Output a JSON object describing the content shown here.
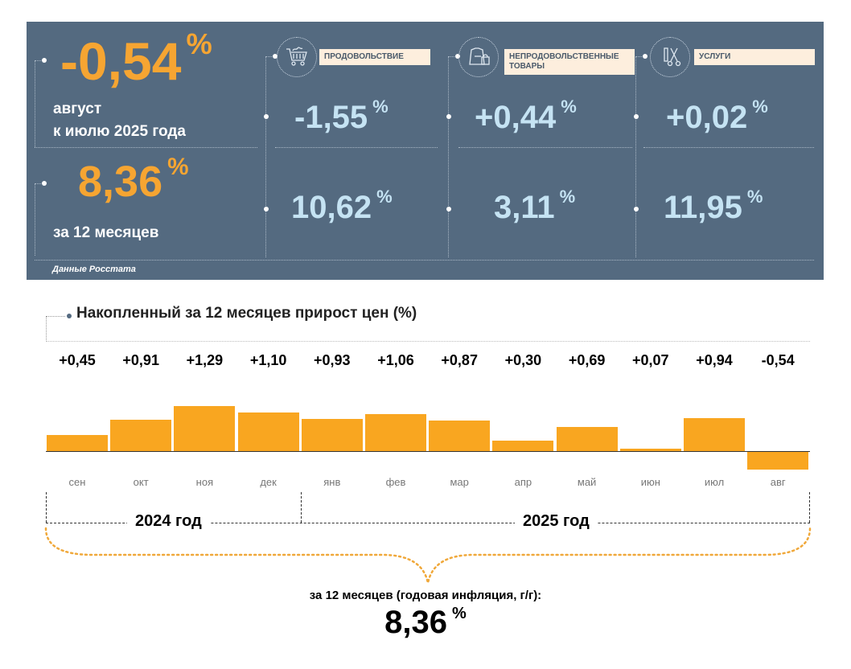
{
  "monthly": {
    "value": "-0,54",
    "unit": "%",
    "line1": "август",
    "line2": "к июлю 2025 года"
  },
  "annual": {
    "value": "8,36",
    "unit": "%",
    "label": "за 12 месяцев"
  },
  "categories": [
    {
      "name": "ПРОДОВОЛЬСТВИЕ",
      "icon": "shopping-cart-icon",
      "monthly": "-1,55",
      "annual": "10,62"
    },
    {
      "name": "НЕПРОДОВОЛЬСТВЕННЫЕ ТОВАРЫ",
      "icon": "clothing-bag-icon",
      "monthly": "+0,44",
      "annual": "3,11"
    },
    {
      "name": "УСЛУГИ",
      "icon": "scissors-comb-icon",
      "monthly": "+0,02",
      "annual": "11,95"
    }
  ],
  "unit": "%",
  "source": "Данные Росстата",
  "colors": {
    "panel": "#546a80",
    "accent": "#f6a532",
    "blue": "#c5e3f3",
    "bar": "#f9a620"
  },
  "chart_data": {
    "type": "bar",
    "title": "Накопленный за 12 месяцев прирост цен (%)",
    "categories": [
      "сен",
      "окт",
      "ноя",
      "дек",
      "янв",
      "фев",
      "мар",
      "апр",
      "май",
      "июн",
      "июл",
      "авг"
    ],
    "labels": [
      "+0,45",
      "+0,91",
      "+1,29",
      "+1,10",
      "+0,93",
      "+1,06",
      "+0,87",
      "+0,30",
      "+0,69",
      "+0,07",
      "+0,94",
      "-0,54"
    ],
    "values": [
      0.45,
      0.91,
      1.29,
      1.1,
      0.93,
      1.06,
      0.87,
      0.3,
      0.69,
      0.07,
      0.94,
      -0.54
    ],
    "groups": [
      "2024 год",
      "2025 год"
    ],
    "total_label": "за 12 месяцев (годовая инфляция, г/г):",
    "total_value": "8,36",
    "total_unit": "%"
  }
}
